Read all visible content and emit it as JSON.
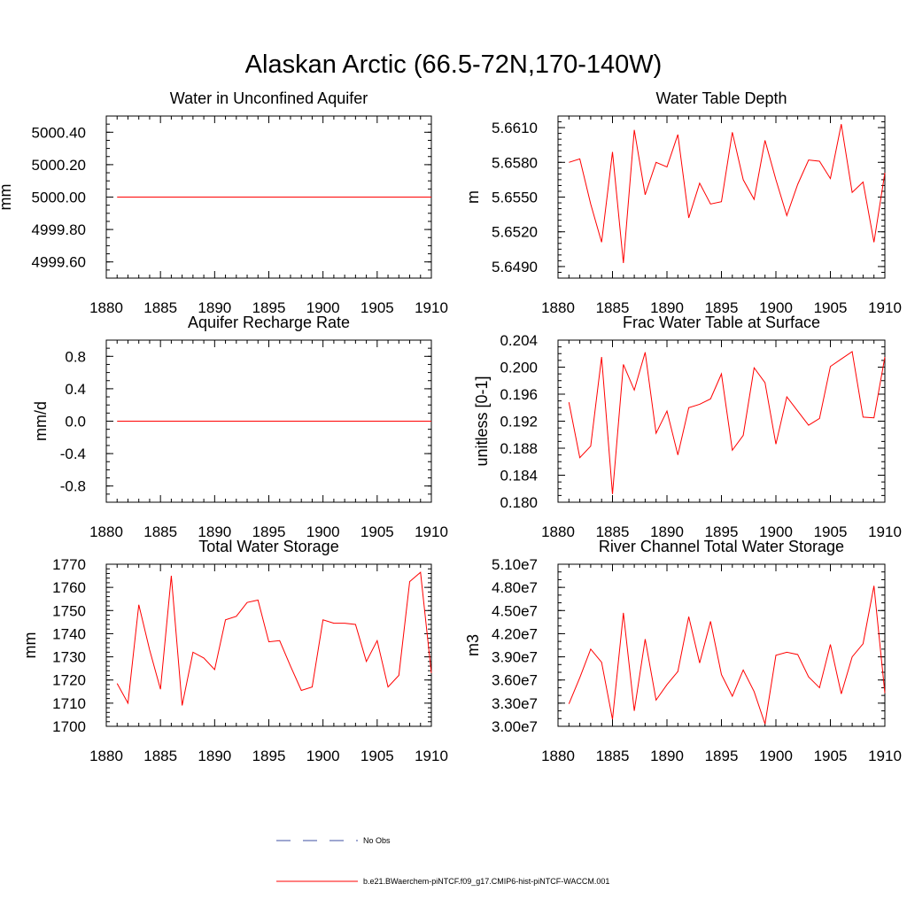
{
  "title": "Alaskan Arctic (66.5-72N,170-140W)",
  "colors": {
    "model_line": "#ff0000",
    "obs_line": "#3d4fa3",
    "axis": "#000000"
  },
  "legend": {
    "placement": "bottom-center",
    "items": [
      {
        "label": "No Obs",
        "style": "dashed",
        "color": "#3d4fa3"
      },
      {
        "label": "b.e21.BWaerchem-piNTCF.f09_g17.CMIP6-hist-piNTCF-WACCM.001",
        "style": "solid",
        "color": "#ff0000"
      }
    ]
  },
  "chart_data": [
    {
      "type": "line",
      "title": "Water in Unconfined Aquifer",
      "ylabel": "mm",
      "xlabel": "",
      "xlim": [
        1880,
        1910
      ],
      "ylim": [
        4999.5,
        5000.5
      ],
      "xticks": [
        1880,
        1885,
        1890,
        1895,
        1900,
        1905,
        1910
      ],
      "xtick_labels": [
        "1880",
        "1885",
        "1890",
        "1895",
        "1900",
        "1905",
        "1910"
      ],
      "yticks": [
        4999.6,
        4999.8,
        5000.0,
        5000.2,
        5000.4
      ],
      "ytick_labels": [
        "4999.60",
        "4999.80",
        "5000.00",
        "5000.20",
        "5000.40"
      ],
      "yminor_step": 0.05,
      "x": [
        1881,
        1882,
        1883,
        1884,
        1885,
        1886,
        1887,
        1888,
        1889,
        1890,
        1891,
        1892,
        1893,
        1894,
        1895,
        1896,
        1897,
        1898,
        1899,
        1900,
        1901,
        1902,
        1903,
        1904,
        1905,
        1906,
        1907,
        1908,
        1909,
        1910
      ],
      "series": [
        {
          "values": [
            5000,
            5000,
            5000,
            5000,
            5000,
            5000,
            5000,
            5000,
            5000,
            5000,
            5000,
            5000,
            5000,
            5000,
            5000,
            5000,
            5000,
            5000,
            5000,
            5000,
            5000,
            5000,
            5000,
            5000,
            5000,
            5000,
            5000,
            5000,
            5000,
            5000
          ]
        }
      ]
    },
    {
      "type": "line",
      "title": "Water Table Depth",
      "ylabel": "m",
      "xlabel": "",
      "xlim": [
        1880,
        1910
      ],
      "ylim": [
        5.648,
        5.662
      ],
      "xticks": [
        1880,
        1885,
        1890,
        1895,
        1900,
        1905,
        1910
      ],
      "xtick_labels": [
        "1880",
        "1885",
        "1890",
        "1895",
        "1900",
        "1905",
        "1910"
      ],
      "yticks": [
        5.649,
        5.652,
        5.655,
        5.658,
        5.661
      ],
      "ytick_labels": [
        "5.6490",
        "5.6520",
        "5.6550",
        "5.6580",
        "5.6610"
      ],
      "yminor_step": 0.0005,
      "x": [
        1881,
        1882,
        1883,
        1884,
        1885,
        1886,
        1887,
        1888,
        1889,
        1890,
        1891,
        1892,
        1893,
        1894,
        1895,
        1896,
        1897,
        1898,
        1899,
        1900,
        1901,
        1902,
        1903,
        1904,
        1905,
        1906,
        1907,
        1908,
        1909,
        1910
      ],
      "series": [
        {
          "values": [
            5.658,
            5.6583,
            5.6544,
            5.6511,
            5.6589,
            5.6493,
            5.6608,
            5.6552,
            5.658,
            5.6576,
            5.6604,
            5.6532,
            5.6562,
            5.6544,
            5.6546,
            5.6606,
            5.6565,
            5.6548,
            5.6599,
            5.6565,
            5.6534,
            5.6561,
            5.6582,
            5.6581,
            5.6566,
            5.6613,
            5.6554,
            5.6563,
            5.6511,
            5.6571
          ]
        }
      ]
    },
    {
      "type": "line",
      "title": "Aquifer Recharge Rate",
      "ylabel": "mm/d",
      "xlabel": "",
      "xlim": [
        1880,
        1910
      ],
      "ylim": [
        -1.0,
        1.0
      ],
      "xticks": [
        1880,
        1885,
        1890,
        1895,
        1900,
        1905,
        1910
      ],
      "xtick_labels": [
        "1880",
        "1885",
        "1890",
        "1895",
        "1900",
        "1905",
        "1910"
      ],
      "yticks": [
        -0.8,
        -0.4,
        0.0,
        0.4,
        0.8
      ],
      "ytick_labels": [
        "-0.8",
        "-0.4",
        "0.0",
        "0.4",
        "0.8"
      ],
      "yminor_step": 0.1,
      "x": [
        1881,
        1882,
        1883,
        1884,
        1885,
        1886,
        1887,
        1888,
        1889,
        1890,
        1891,
        1892,
        1893,
        1894,
        1895,
        1896,
        1897,
        1898,
        1899,
        1900,
        1901,
        1902,
        1903,
        1904,
        1905,
        1906,
        1907,
        1908,
        1909,
        1910
      ],
      "series": [
        {
          "values": [
            0,
            0,
            0,
            0,
            0,
            0,
            0,
            0,
            0,
            0,
            0,
            0,
            0,
            0,
            0,
            0,
            0,
            0,
            0,
            0,
            0,
            0,
            0,
            0,
            0,
            0,
            0,
            0,
            0,
            0
          ]
        }
      ]
    },
    {
      "type": "line",
      "title": "Frac Water Table at Surface",
      "ylabel": "unitless [0-1]",
      "xlabel": "",
      "xlim": [
        1880,
        1910
      ],
      "ylim": [
        0.18,
        0.204
      ],
      "xticks": [
        1880,
        1885,
        1890,
        1895,
        1900,
        1905,
        1910
      ],
      "xtick_labels": [
        "1880",
        "1885",
        "1890",
        "1895",
        "1900",
        "1905",
        "1910"
      ],
      "yticks": [
        0.18,
        0.184,
        0.188,
        0.192,
        0.196,
        0.2,
        0.204
      ],
      "ytick_labels": [
        "0.180",
        "0.184",
        "0.188",
        "0.192",
        "0.196",
        "0.200",
        "0.204"
      ],
      "yminor_step": 0.001,
      "x": [
        1881,
        1882,
        1883,
        1884,
        1885,
        1886,
        1887,
        1888,
        1889,
        1890,
        1891,
        1892,
        1893,
        1894,
        1895,
        1896,
        1897,
        1898,
        1899,
        1900,
        1901,
        1902,
        1903,
        1904,
        1905,
        1906,
        1907,
        1908,
        1909,
        1910
      ],
      "series": [
        {
          "values": [
            0.1948,
            0.1866,
            0.1883,
            0.2015,
            0.1812,
            0.2004,
            0.1966,
            0.2022,
            0.1902,
            0.1935,
            0.187,
            0.194,
            0.1945,
            0.1953,
            0.199,
            0.1877,
            0.1899,
            0.1999,
            0.1977,
            0.1886,
            0.1956,
            0.1935,
            0.1914,
            0.1924,
            0.2001,
            0.2012,
            0.2023,
            0.1926,
            0.1925,
            0.2015
          ]
        }
      ]
    },
    {
      "type": "line",
      "title": "Total Water Storage",
      "ylabel": "mm",
      "xlabel": "",
      "xlim": [
        1880,
        1910
      ],
      "ylim": [
        1700,
        1770
      ],
      "xticks": [
        1880,
        1885,
        1890,
        1895,
        1900,
        1905,
        1910
      ],
      "xtick_labels": [
        "1880",
        "1885",
        "1890",
        "1895",
        "1900",
        "1905",
        "1910"
      ],
      "yticks": [
        1700,
        1710,
        1720,
        1730,
        1740,
        1750,
        1760,
        1770
      ],
      "ytick_labels": [
        "1700",
        "1710",
        "1720",
        "1730",
        "1740",
        "1750",
        "1760",
        "1770"
      ],
      "yminor_step": 2,
      "x": [
        1881,
        1882,
        1883,
        1884,
        1885,
        1886,
        1887,
        1888,
        1889,
        1890,
        1891,
        1892,
        1893,
        1894,
        1895,
        1896,
        1897,
        1898,
        1899,
        1900,
        1901,
        1902,
        1903,
        1904,
        1905,
        1906,
        1907,
        1908,
        1909,
        1910
      ],
      "series": [
        {
          "values": [
            1718.5,
            1710,
            1752.5,
            1733,
            1716,
            1765,
            1709,
            1732,
            1729.5,
            1724.5,
            1746,
            1747.5,
            1753.5,
            1754.5,
            1736.5,
            1737,
            1726,
            1715.5,
            1717,
            1746,
            1744.5,
            1744.5,
            1744,
            1728,
            1737,
            1717,
            1722,
            1762.5,
            1766.5,
            1723
          ]
        }
      ]
    },
    {
      "type": "line",
      "title": "River Channel Total Water Storage",
      "ylabel": "m3",
      "xlabel": "",
      "xlim": [
        1880,
        1910
      ],
      "ylim": [
        30000000,
        51000000
      ],
      "xticks": [
        1880,
        1885,
        1890,
        1895,
        1900,
        1905,
        1910
      ],
      "xtick_labels": [
        "1880",
        "1885",
        "1890",
        "1895",
        "1900",
        "1905",
        "1910"
      ],
      "yticks": [
        30000000,
        33000000,
        36000000,
        39000000,
        42000000,
        45000000,
        48000000,
        51000000
      ],
      "ytick_labels": [
        "3.00e7",
        "3.30e7",
        "3.60e7",
        "3.90e7",
        "4.20e7",
        "4.50e7",
        "4.80e7",
        "5.10e7"
      ],
      "yminor_step": 1000000,
      "x": [
        1881,
        1882,
        1883,
        1884,
        1885,
        1886,
        1887,
        1888,
        1889,
        1890,
        1891,
        1892,
        1893,
        1894,
        1895,
        1896,
        1897,
        1898,
        1899,
        1900,
        1901,
        1902,
        1903,
        1904,
        1905,
        1906,
        1907,
        1908,
        1909,
        1910
      ],
      "series": [
        {
          "values": [
            32900000,
            36300000,
            40000000,
            38300000,
            30900000,
            44700000,
            32000000,
            41300000,
            33400000,
            35400000,
            37100000,
            44200000,
            38200000,
            43600000,
            36700000,
            33900000,
            37300000,
            34500000,
            30300000,
            39200000,
            39600000,
            39300000,
            36400000,
            35000000,
            40600000,
            34200000,
            39000000,
            40700000,
            48200000,
            34300000
          ]
        }
      ]
    }
  ]
}
